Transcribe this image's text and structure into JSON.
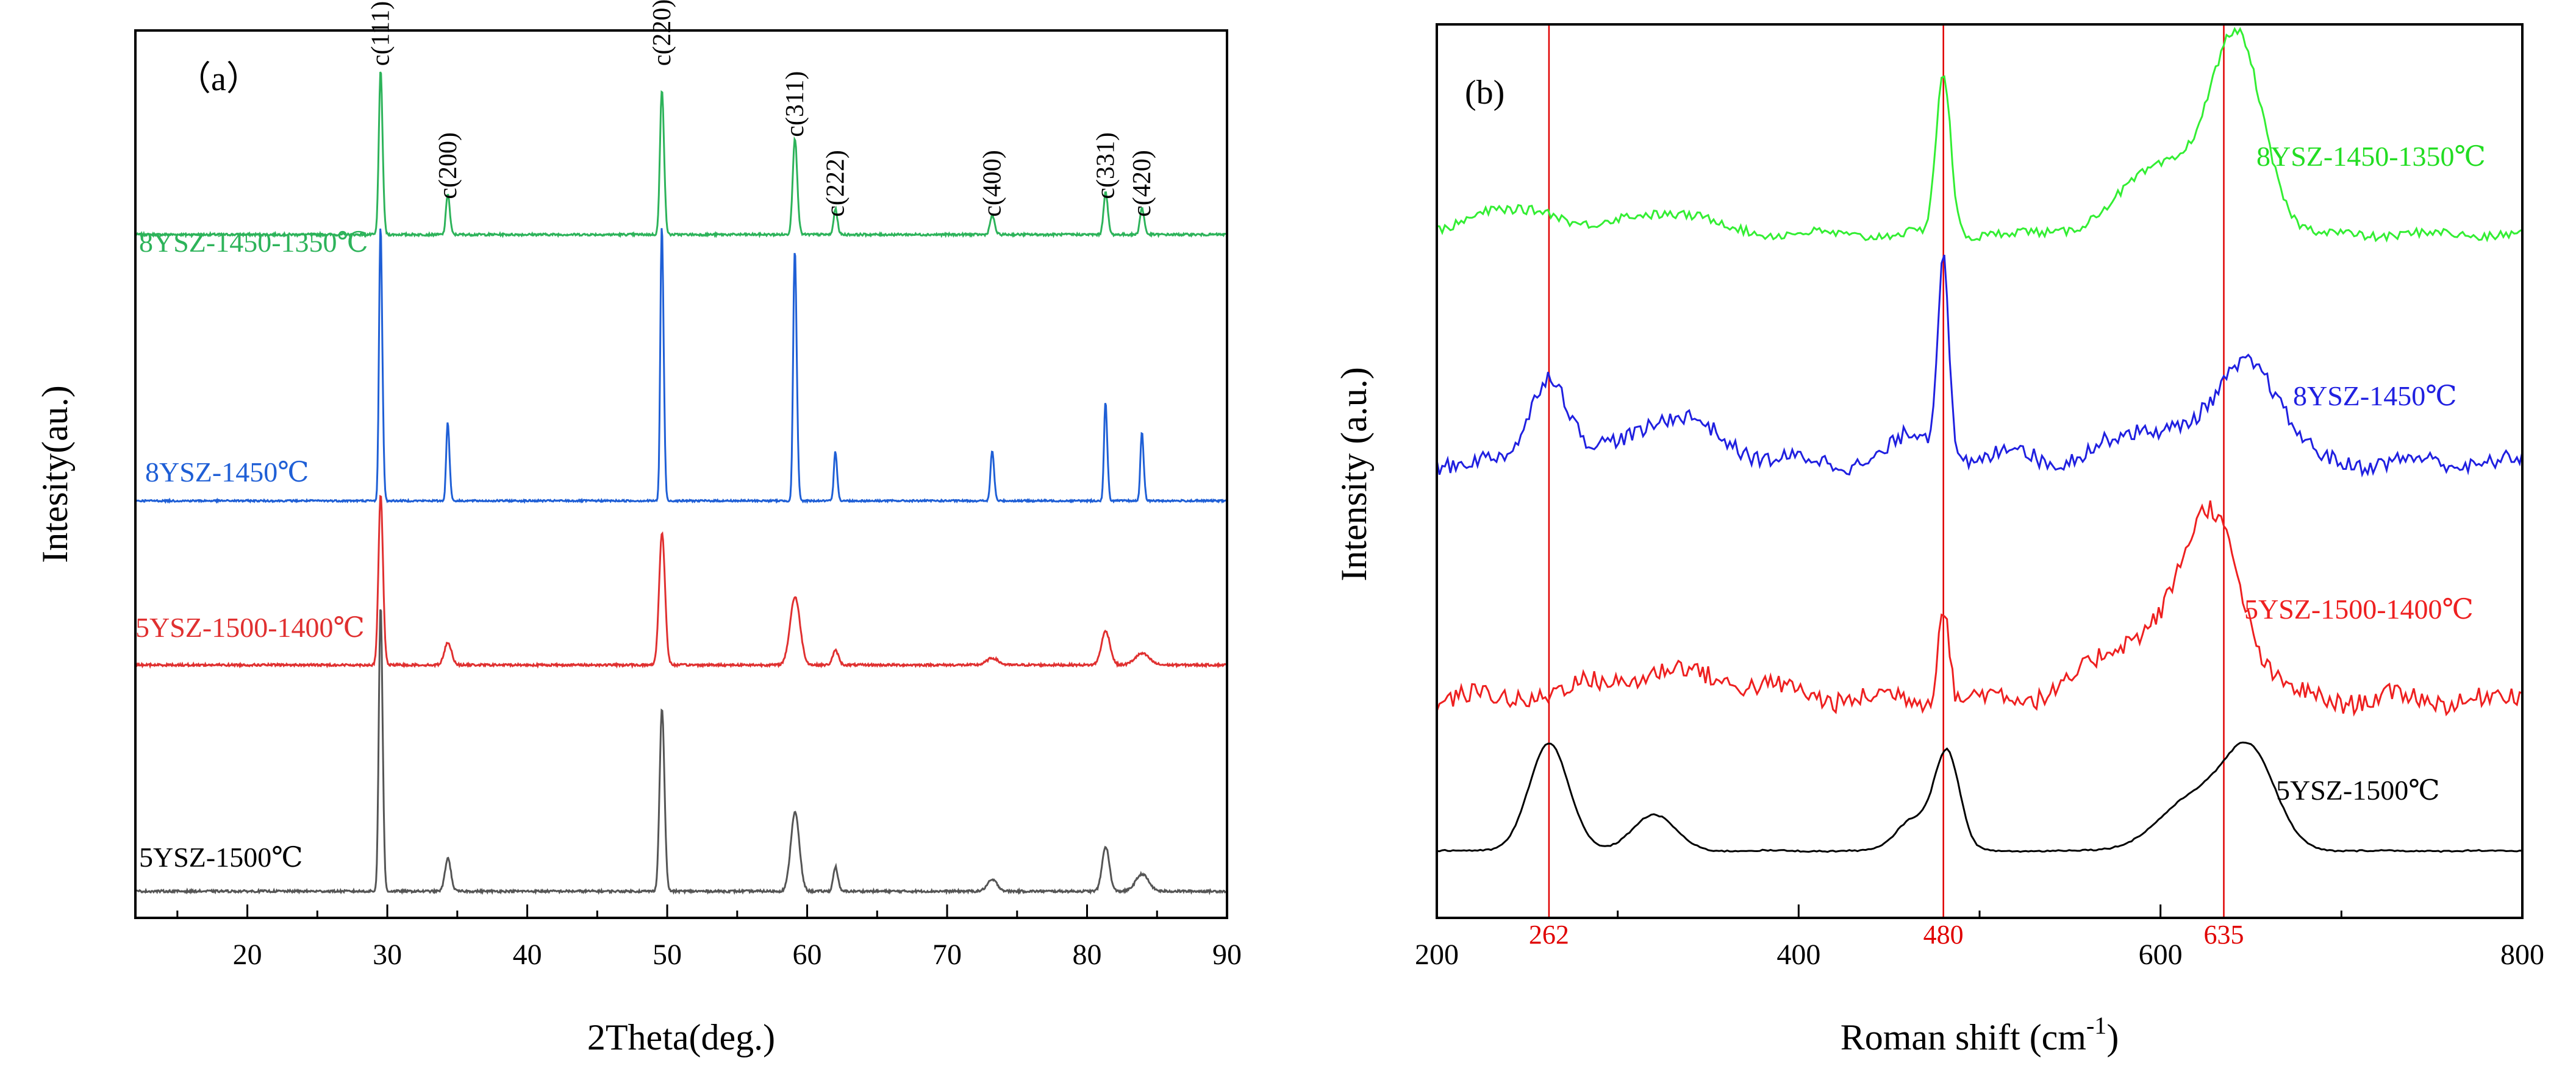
{
  "chart_data": [
    {
      "type": "line",
      "panel_label": "（a）",
      "title": "",
      "xlabel": "2Theta(deg.)",
      "ylabel": "Intesity(au.)",
      "xlim": [
        12,
        90
      ],
      "ylim": [
        0,
        100
      ],
      "x_ticks": [
        "20",
        "30",
        "40",
        "50",
        "60",
        "70",
        "80",
        "90"
      ],
      "grid": false,
      "peak_labels": [
        {
          "x": 29.5,
          "y": 96,
          "text": "c(111)"
        },
        {
          "x": 34.3,
          "y": 81,
          "text": "c(200)"
        },
        {
          "x": 49.6,
          "y": 96,
          "text": "c(220)"
        },
        {
          "x": 59.1,
          "y": 88,
          "text": "c(311)"
        },
        {
          "x": 62.0,
          "y": 79,
          "text": "c(222)"
        },
        {
          "x": 73.2,
          "y": 79,
          "text": "c(400)"
        },
        {
          "x": 81.3,
          "y": 81,
          "text": "c(331)"
        },
        {
          "x": 83.9,
          "y": 79,
          "text": "c(420)"
        }
      ],
      "peaks_x": [
        29.5,
        34.3,
        49.6,
        59.1,
        62.0,
        73.2,
        81.3,
        83.9
      ],
      "series": [
        {
          "name": "8YSZ-1450-1350℃",
          "color": "#2db35a",
          "baseline": 77,
          "heights": [
            16,
            4,
            14,
            9,
            2.5,
            1.8,
            4,
            2.5
          ],
          "widths": [
            0.12,
            0.12,
            0.13,
            0.15,
            0.12,
            0.15,
            0.14,
            0.14
          ],
          "noise": 0.25
        },
        {
          "name": "8YSZ-1450℃",
          "color": "#1f5fd6",
          "baseline": 47,
          "heights": [
            28,
            8,
            28,
            25,
            5,
            5,
            10,
            7
          ],
          "widths": [
            0.1,
            0.1,
            0.1,
            0.11,
            0.1,
            0.11,
            0.1,
            0.1
          ],
          "noise": 0.2
        },
        {
          "name": "5YSZ-1500-1400℃",
          "color": "#e03030",
          "baseline": 28.5,
          "heights": [
            16,
            2,
            12,
            6,
            1.3,
            0.6,
            3,
            1
          ],
          "widths": [
            0.15,
            0.25,
            0.2,
            0.35,
            0.2,
            0.4,
            0.3,
            0.5
          ],
          "noise": 0.25
        },
        {
          "name": "5YSZ-1500℃",
          "color": "#555555",
          "baseline": 3,
          "heights": [
            28,
            3,
            17,
            7,
            2.3,
            1,
            4,
            1.5
          ],
          "widths": [
            0.12,
            0.2,
            0.16,
            0.3,
            0.15,
            0.35,
            0.25,
            0.45
          ],
          "noise": 0.25
        }
      ]
    },
    {
      "type": "line",
      "panel_label": "(b)",
      "title": "",
      "xlabel": "Roman shift (cm",
      "xlabel_sup": "-1",
      "xlabel_close": ")",
      "ylabel": "Intensity (a.u.)",
      "xlim": [
        200,
        800
      ],
      "ylim": [
        0,
        100
      ],
      "x_ticks": [
        "200",
        "400",
        "600",
        "800"
      ],
      "reference_lines": [
        {
          "x": 262,
          "label": "262"
        },
        {
          "x": 480,
          "label": "480"
        },
        {
          "x": 635,
          "label": "635"
        }
      ],
      "series": [
        {
          "name": "8YSZ-1450-1350℃",
          "color": "#33ee33",
          "baseline": 76.5,
          "peaks": [
            {
              "c": 230,
              "h": 2.5,
              "w": 18
            },
            {
              "c": 262,
              "h": 2,
              "w": 12
            },
            {
              "c": 325,
              "h": 2.5,
              "w": 25
            },
            {
              "c": 480,
              "h": 18,
              "w": 4
            },
            {
              "c": 605,
              "h": 8,
              "w": 25
            },
            {
              "c": 643,
              "h": 20,
              "w": 14
            }
          ],
          "noise": 0.5
        },
        {
          "name": "8YSZ-1450℃",
          "color": "#2020e0",
          "baseline": 51,
          "peaks": [
            {
              "c": 262,
              "h": 10,
              "w": 10
            },
            {
              "c": 330,
              "h": 5,
              "w": 25
            },
            {
              "c": 465,
              "h": 3,
              "w": 12
            },
            {
              "c": 480,
              "h": 23,
              "w": 3
            },
            {
              "c": 520,
              "h": 1.5,
              "w": 8
            },
            {
              "c": 600,
              "h": 4,
              "w": 25
            },
            {
              "c": 650,
              "h": 11,
              "w": 16
            }
          ],
          "noise": 0.9
        },
        {
          "name": "5YSZ-1500-1400℃",
          "color": "#ee2020",
          "baseline": 24.5,
          "peaks": [
            {
              "c": 330,
              "h": 3,
              "w": 40
            },
            {
              "c": 480,
              "h": 11,
              "w": 3
            },
            {
              "c": 600,
              "h": 8,
              "w": 30
            },
            {
              "c": 630,
              "h": 16,
              "w": 15
            }
          ],
          "noise": 1.1
        },
        {
          "name": "5YSZ-1500℃",
          "color": "#000000",
          "baseline": 7.5,
          "peaks": [
            {
              "c": 262,
              "h": 12,
              "w": 11
            },
            {
              "c": 320,
              "h": 4,
              "w": 12
            },
            {
              "c": 463,
              "h": 3.5,
              "w": 9
            },
            {
              "c": 482,
              "h": 11,
              "w": 7
            },
            {
              "c": 620,
              "h": 6,
              "w": 20
            },
            {
              "c": 650,
              "h": 10,
              "w": 14
            }
          ],
          "noise": 0.08
        }
      ]
    }
  ]
}
